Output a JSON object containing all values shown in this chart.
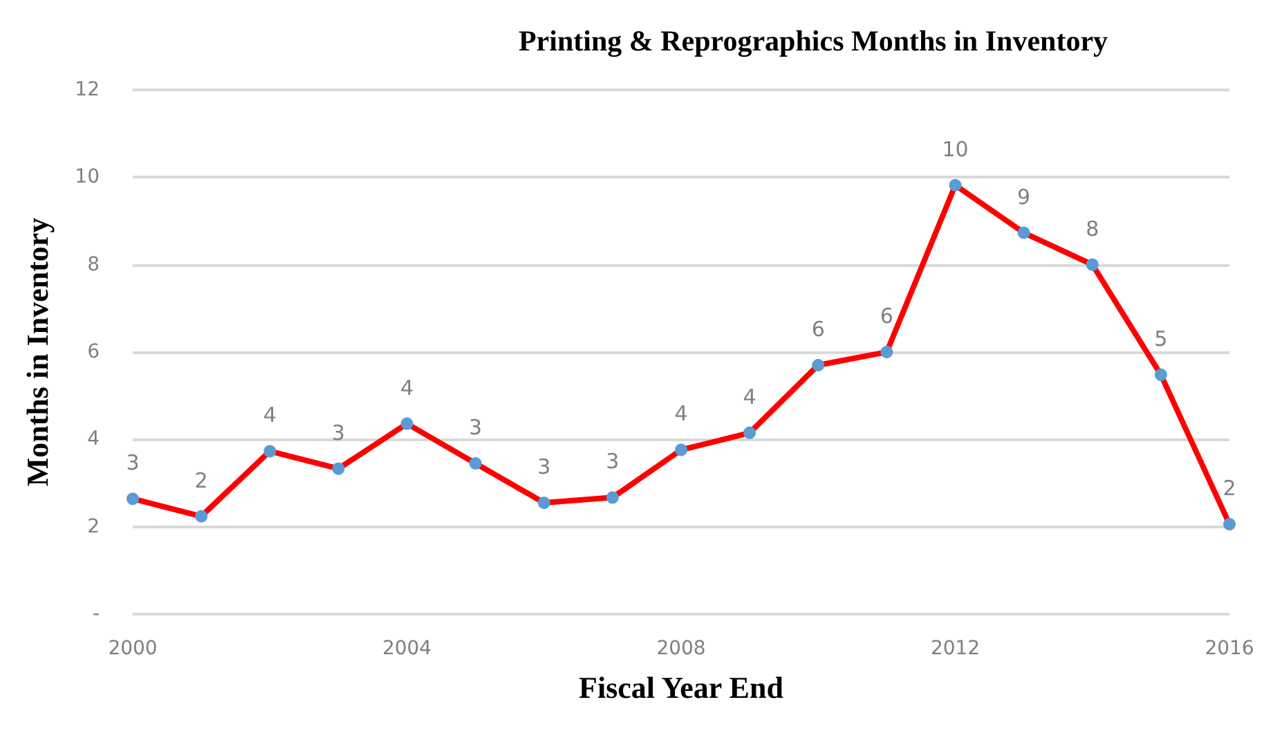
{
  "chart_data": {
    "type": "line",
    "title": "Printing & Reprographics Months in Inventory",
    "xlabel": "Fiscal Year End",
    "ylabel": "Months in Inventory",
    "x": [
      2000,
      2001,
      2002,
      2003,
      2004,
      2005,
      2006,
      2007,
      2008,
      2009,
      2010,
      2011,
      2012,
      2013,
      2014,
      2015,
      2016
    ],
    "series": [
      {
        "color": "#ff0000",
        "values": [
          2.64,
          2.24,
          3.73,
          3.33,
          4.36,
          3.45,
          2.55,
          2.67,
          3.76,
          4.15,
          5.7,
          6.0,
          9.82,
          8.73,
          8.0,
          5.48,
          2.06
        ],
        "value_labels": [
          "3",
          "2",
          "4",
          "3",
          "4",
          "3",
          "3",
          "3",
          "4",
          "4",
          "6",
          "6",
          "10",
          "9",
          "8",
          "5",
          "2"
        ]
      }
    ],
    "xlim": [
      2000,
      2016
    ],
    "xticks": [
      2000,
      2004,
      2008,
      2012,
      2016
    ],
    "ylim": [
      0,
      12
    ],
    "yticks": [
      {
        "value": 0,
        "label": "-"
      },
      2,
      4,
      6,
      8,
      10,
      12
    ],
    "grid": "y",
    "marker": "circle",
    "line_style": "solid"
  }
}
